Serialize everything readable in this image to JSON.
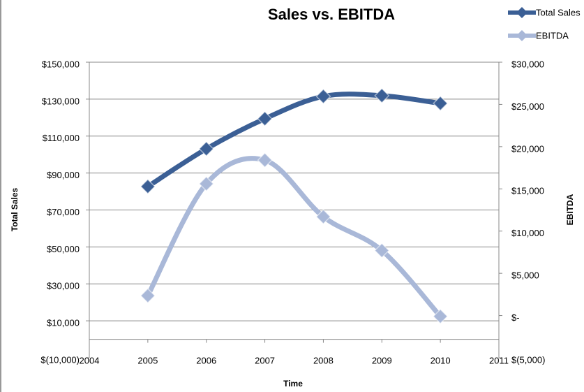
{
  "chart_data": {
    "type": "line",
    "title": "Sales vs. EBITDA",
    "x_label": "Time",
    "y_label": "Total Sales",
    "y2_label": "EBITDA",
    "x": [
      2005,
      2006,
      2007,
      2008,
      2009,
      2010
    ],
    "xlim": [
      2004,
      2011
    ],
    "xticks": [
      2004,
      2005,
      2006,
      2007,
      2008,
      2009,
      2010,
      2011
    ],
    "ylim": [
      -10000,
      150000
    ],
    "yticks": [
      {
        "value": -10000,
        "label": "$(10,000)"
      },
      {
        "value": 10000,
        "label": "$10,000"
      },
      {
        "value": 30000,
        "label": "$30,000"
      },
      {
        "value": 50000,
        "label": "$50,000"
      },
      {
        "value": 70000,
        "label": "$70,000"
      },
      {
        "value": 90000,
        "label": "$90,000"
      },
      {
        "value": 110000,
        "label": "$110,000"
      },
      {
        "value": 130000,
        "label": "$130,000"
      },
      {
        "value": 150000,
        "label": "$150,000"
      }
    ],
    "y2lim": [
      -5000,
      30000
    ],
    "y2ticks": [
      {
        "value": -5000,
        "label": "$(5,000)"
      },
      {
        "value": 0,
        "label": "$-"
      },
      {
        "value": 5000,
        "label": "$5,000"
      },
      {
        "value": 10000,
        "label": "$10,000"
      },
      {
        "value": 15000,
        "label": "$15,000"
      },
      {
        "value": 20000,
        "label": "$20,000"
      },
      {
        "value": 25000,
        "label": "$25,000"
      },
      {
        "value": 30000,
        "label": "$30,000"
      }
    ],
    "grid": true,
    "smooth": true,
    "legend": "top-right",
    "series": [
      {
        "name": "Total Sales",
        "color": "#3b5f95",
        "values": [
          82700,
          103100,
          119400,
          131500,
          131900,
          127700
        ]
      },
      {
        "name": "EBITDA",
        "color": "#a9b8d8",
        "axis": "y2",
        "values": [
          2350,
          15600,
          18400,
          11700,
          7700,
          -100
        ]
      }
    ]
  }
}
